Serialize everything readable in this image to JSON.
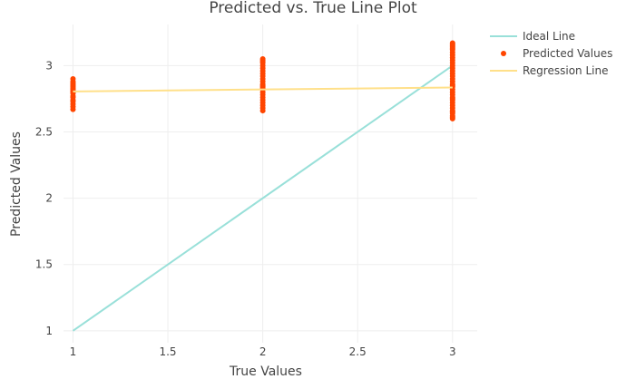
{
  "chart_data": {
    "type": "scatter",
    "title": "Predicted vs. True Line Plot",
    "xlabel": "True Values",
    "ylabel": "Predicted Values",
    "xlim": [
      0.95,
      3.13
    ],
    "ylim": [
      0.91,
      3.31
    ],
    "x_ticks": [
      1,
      1.5,
      2,
      2.5,
      3
    ],
    "x_tick_labels": [
      "1",
      "1.5",
      "2",
      "2.5",
      "3"
    ],
    "y_ticks": [
      1,
      1.5,
      2,
      2.5,
      3
    ],
    "y_tick_labels": [
      "1",
      "1.5",
      "2",
      "2.5",
      "3"
    ],
    "grid": true,
    "legend_position": "top-right",
    "series": [
      {
        "name": "Ideal Line",
        "kind": "line",
        "color": "#99E0D9",
        "x": [
          1,
          3
        ],
        "y": [
          1,
          3
        ]
      },
      {
        "name": "Predicted Values",
        "kind": "markers",
        "color": "#FF4500",
        "x": [
          1,
          1,
          1,
          1,
          1,
          1,
          1,
          1,
          1,
          1,
          1,
          1,
          1,
          1,
          1,
          1,
          1,
          1,
          2,
          2,
          2,
          2,
          2,
          2,
          2,
          2,
          2,
          2,
          2,
          2,
          2,
          2,
          2,
          2,
          2,
          2,
          2,
          2,
          2,
          2,
          2,
          2,
          3,
          3,
          3,
          3,
          3,
          3,
          3,
          3,
          3,
          3,
          3,
          3,
          3,
          3,
          3,
          3,
          3,
          3,
          3,
          3,
          3,
          3,
          3,
          3,
          3,
          3,
          3,
          3,
          3,
          3,
          3,
          3,
          3,
          3,
          3,
          3
        ],
        "y": [
          2.67,
          2.69,
          2.71,
          2.73,
          2.74,
          2.76,
          2.77,
          2.79,
          2.8,
          2.81,
          2.82,
          2.83,
          2.84,
          2.85,
          2.86,
          2.87,
          2.88,
          2.9,
          2.66,
          2.68,
          2.7,
          2.72,
          2.74,
          2.76,
          2.78,
          2.8,
          2.82,
          2.83,
          2.84,
          2.85,
          2.86,
          2.88,
          2.9,
          2.92,
          2.94,
          2.96,
          2.98,
          3.0,
          3.02,
          3.03,
          3.04,
          3.05,
          2.6,
          2.62,
          2.64,
          2.66,
          2.68,
          2.7,
          2.72,
          2.74,
          2.76,
          2.78,
          2.8,
          2.82,
          2.84,
          2.86,
          2.88,
          2.9,
          2.92,
          2.94,
          2.96,
          2.98,
          3.0,
          3.02,
          3.04,
          3.06,
          3.08,
          3.1,
          3.12,
          3.13,
          3.14,
          3.15,
          3.16,
          3.17,
          2.61,
          2.65,
          2.75,
          2.85
        ]
      },
      {
        "name": "Regression Line",
        "kind": "line",
        "color": "#FFE08A",
        "x": [
          1,
          3
        ],
        "y": [
          2.805,
          2.835
        ]
      }
    ]
  }
}
